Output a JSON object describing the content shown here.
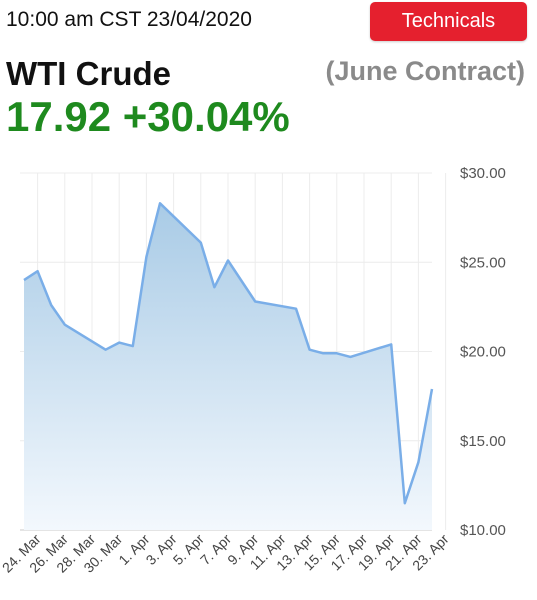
{
  "header": {
    "timestamp": "10:00 am CST 23/04/2020",
    "technicals_label": "Technicals",
    "instrument": "WTI Crude",
    "contract": "(June Contract)",
    "price": "17.92",
    "change": "+30.04%"
  },
  "colors": {
    "button": "#e5202e",
    "price": "#1e8a1e",
    "line": "#7aaee8",
    "fill_top": "#a9cbe6",
    "fill_bottom": "#f3f8fd"
  },
  "chart_data": {
    "type": "area",
    "x_tick_labels": [
      "24. Mar",
      "26. Mar",
      "28. Mar",
      "30. Mar",
      "1. Apr",
      "3. Apr",
      "5. Apr",
      "7. Apr",
      "9. Apr",
      "11. Apr",
      "13. Apr",
      "15. Apr",
      "17. Apr",
      "19. Apr",
      "21. Apr",
      "23. Apr"
    ],
    "y_ticks": [
      "$30.00",
      "$25.00",
      "$20.00",
      "$15.00",
      "$10.00"
    ],
    "ylim": [
      10,
      30
    ],
    "grid": true,
    "series": [
      {
        "points": [
          {
            "x": "23. Mar",
            "y": 24.0
          },
          {
            "x": "24. Mar",
            "y": 24.5
          },
          {
            "x": "25. Mar",
            "y": 22.6
          },
          {
            "x": "26. Mar",
            "y": 21.5
          },
          {
            "x": "29. Mar",
            "y": 20.1
          },
          {
            "x": "30. Mar",
            "y": 20.5
          },
          {
            "x": "31. Mar",
            "y": 20.3
          },
          {
            "x": "1. Apr",
            "y": 25.3
          },
          {
            "x": "2. Apr",
            "y": 28.3
          },
          {
            "x": "5. Apr",
            "y": 26.1
          },
          {
            "x": "6. Apr",
            "y": 23.6
          },
          {
            "x": "7. Apr",
            "y": 25.1
          },
          {
            "x": "9. Apr",
            "y": 22.8
          },
          {
            "x": "12. Apr",
            "y": 22.4
          },
          {
            "x": "13. Apr",
            "y": 20.1
          },
          {
            "x": "14. Apr",
            "y": 19.9
          },
          {
            "x": "15. Apr",
            "y": 19.9
          },
          {
            "x": "16. Apr",
            "y": 19.7
          },
          {
            "x": "19. Apr",
            "y": 20.4
          },
          {
            "x": "20. Apr",
            "y": 11.5
          },
          {
            "x": "21. Apr",
            "y": 13.8
          },
          {
            "x": "22. Apr",
            "y": 17.9
          }
        ]
      }
    ]
  }
}
